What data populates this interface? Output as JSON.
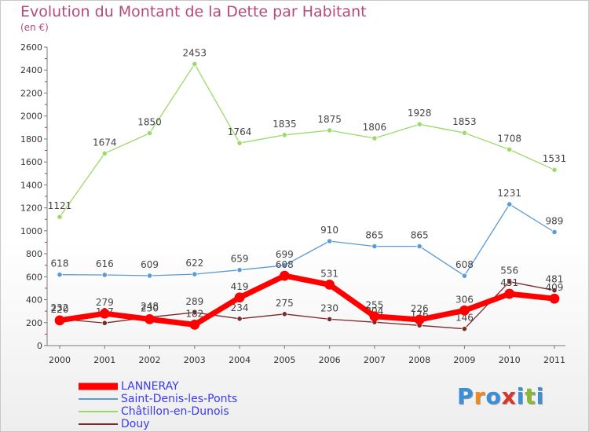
{
  "title": "Evolution du Montant de la Dette par Habitant",
  "subtitle": "(en €)",
  "logo_text": "Proxiti",
  "chart_data": {
    "type": "line",
    "title": "Evolution du Montant de la Dette par Habitant",
    "subtitle": "(en €)",
    "x": [
      "2000",
      "2001",
      "2002",
      "2003",
      "2004",
      "2005",
      "2006",
      "2007",
      "2008",
      "2009",
      "2010",
      "2011"
    ],
    "ylim": [
      0,
      2600
    ],
    "yticks": [
      "0",
      "200",
      "400",
      "600",
      "800",
      "1000",
      "1200",
      "1400",
      "1600",
      "1800",
      "2000",
      "2200",
      "2400",
      "2600"
    ],
    "grid": false,
    "legend_position": "bottom-left",
    "series": [
      {
        "name": "LANNERAY",
        "color": "#ff0000",
        "values": [
          220,
          279,
          230,
          182,
          419,
          608,
          531,
          255,
          226,
          306,
          451,
          409
        ]
      },
      {
        "name": "Saint-Denis-les-Ponts",
        "color": "#5b9bd5",
        "values": [
          618,
          616,
          609,
          622,
          659,
          699,
          910,
          865,
          865,
          608,
          1231,
          989
        ]
      },
      {
        "name": "Châtillon-en-Dunois",
        "color": "#9ada6a",
        "values": [
          1121,
          1674,
          1850,
          2453,
          1764,
          1835,
          1875,
          1806,
          1928,
          1853,
          1708,
          1531
        ]
      },
      {
        "name": "Douy",
        "color": "#7b2a2a",
        "values": [
          232,
          197,
          248,
          289,
          234,
          275,
          230,
          204,
          176,
          146,
          556,
          481
        ]
      }
    ]
  }
}
